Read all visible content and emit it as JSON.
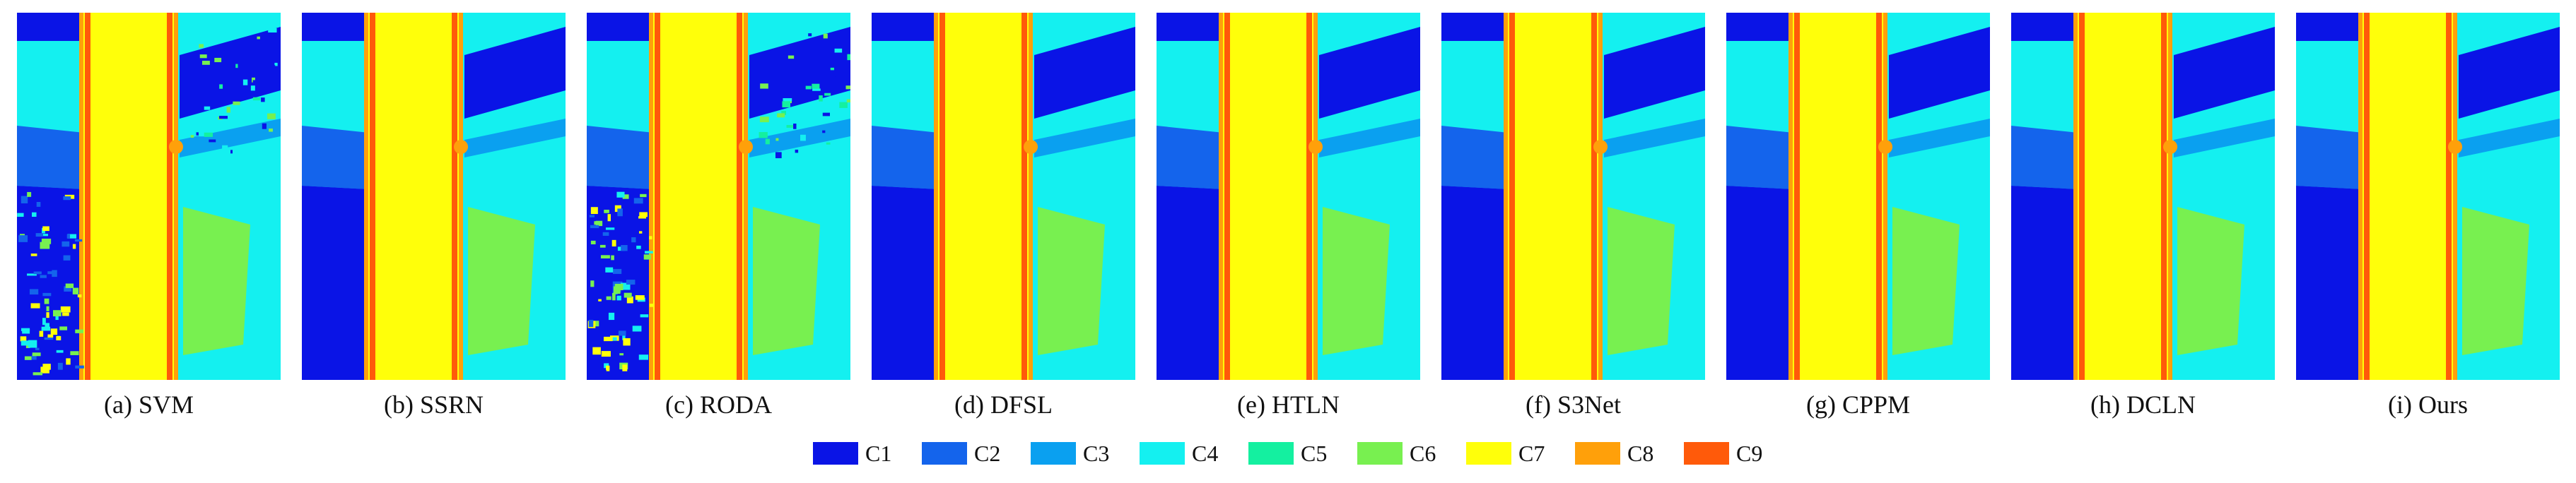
{
  "panels": [
    {
      "id": "svm",
      "caption": "(a) SVM"
    },
    {
      "id": "ssrn",
      "caption": "(b) SSRN"
    },
    {
      "id": "roda",
      "caption": "(c) RODA"
    },
    {
      "id": "dfsl",
      "caption": "(d) DFSL"
    },
    {
      "id": "htln",
      "caption": "(e) HTLN"
    },
    {
      "id": "s3net",
      "caption": "(f) S3Net"
    },
    {
      "id": "cppm",
      "caption": "(g) CPPM"
    },
    {
      "id": "dcln",
      "caption": "(h) DCLN"
    },
    {
      "id": "ours",
      "caption": "(i) Ours"
    }
  ],
  "legend": [
    {
      "label": "C1",
      "color": "#0a14e6"
    },
    {
      "label": "C2",
      "color": "#1464ec"
    },
    {
      "label": "C3",
      "color": "#0aa0f0"
    },
    {
      "label": "C4",
      "color": "#14f0f0"
    },
    {
      "label": "C5",
      "color": "#14f0a0"
    },
    {
      "label": "C6",
      "color": "#78f050"
    },
    {
      "label": "C7",
      "color": "#ffff0a"
    },
    {
      "label": "C8",
      "color": "#ffa00a"
    },
    {
      "label": "C9",
      "color": "#ff5a0a"
    }
  ]
}
